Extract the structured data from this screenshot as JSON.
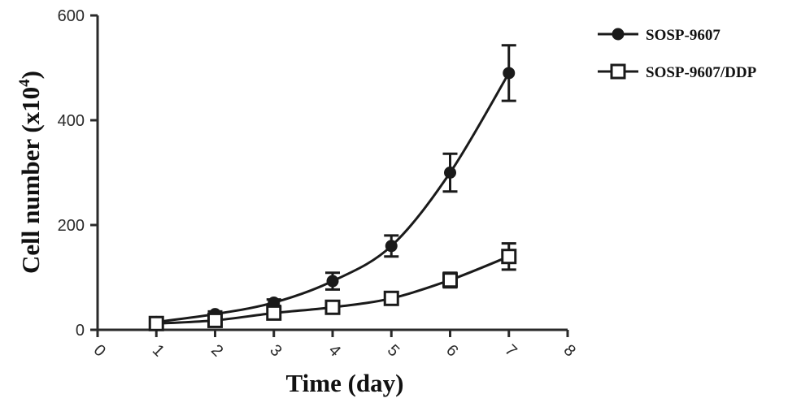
{
  "chart_data": {
    "type": "line",
    "xlabel": "Time (day)",
    "ylabel": {
      "text": "Cell number (x10",
      "superscript": "4",
      "suffix": ")"
    },
    "x_ticks": [
      "0",
      "1",
      "2",
      "3",
      "4",
      "5",
      "6",
      "7",
      "8"
    ],
    "y_ticks": [
      "0",
      "200",
      "400",
      "600"
    ],
    "xlim": [
      0,
      8
    ],
    "ylim": [
      0,
      600
    ],
    "grid": false,
    "legend_position": "top-right",
    "series": [
      {
        "name": "SOSP-9607",
        "marker": "filled-circle",
        "x": [
          1,
          2,
          3,
          4,
          5,
          6,
          7
        ],
        "y": [
          15,
          30,
          52,
          93,
          160,
          300,
          490
        ],
        "error": [
          3,
          5,
          6,
          16,
          20,
          36,
          53
        ]
      },
      {
        "name": "SOSP-9607/DDP",
        "marker": "open-square",
        "x": [
          1,
          2,
          3,
          4,
          5,
          6,
          7
        ],
        "y": [
          12,
          18,
          32,
          43,
          60,
          95,
          140
        ],
        "error": [
          2,
          3,
          5,
          6,
          8,
          14,
          25
        ]
      }
    ],
    "colors": {
      "line": "#1a1a1a",
      "axis": "#2a2a2a"
    }
  }
}
